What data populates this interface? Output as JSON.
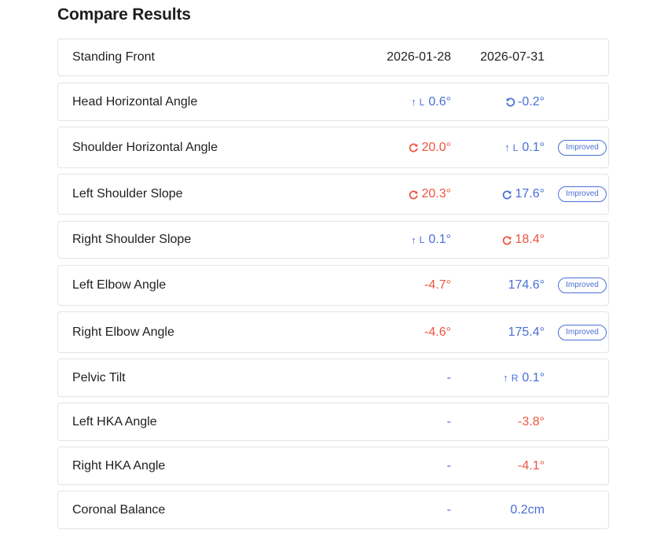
{
  "page_title": "Compare Results",
  "colors": {
    "improved_blue": "#4a6fd6",
    "worse_red": "#ec5540"
  },
  "header": {
    "label": "Standing Front",
    "date1": "2026-01-28",
    "date2": "2026-07-31"
  },
  "rows": [
    {
      "label": "Head Horizontal Angle",
      "v1": {
        "value": "0.6°",
        "color": "blue",
        "icon": "up-arrow-icon",
        "side": "L"
      },
      "v2": {
        "value": "-0.2°",
        "color": "blue",
        "icon": "rotate-ccw-icon"
      },
      "badge": ""
    },
    {
      "label": "Shoulder Horizontal Angle",
      "v1": {
        "value": "20.0°",
        "color": "red",
        "icon": "rotate-cw-icon"
      },
      "v2": {
        "value": "0.1°",
        "color": "blue",
        "icon": "up-arrow-icon",
        "side": "L"
      },
      "badge": "Improved"
    },
    {
      "label": "Left Shoulder Slope",
      "v1": {
        "value": "20.3°",
        "color": "red",
        "icon": "rotate-cw-icon"
      },
      "v2": {
        "value": "17.6°",
        "color": "blue",
        "icon": "rotate-cw-icon"
      },
      "badge": "Improved"
    },
    {
      "label": "Right Shoulder Slope",
      "v1": {
        "value": "0.1°",
        "color": "blue",
        "icon": "up-arrow-icon",
        "side": "L"
      },
      "v2": {
        "value": "18.4°",
        "color": "red",
        "icon": "rotate-cw-icon"
      },
      "badge": ""
    },
    {
      "label": "Left Elbow Angle",
      "v1": {
        "value": "-4.7°",
        "color": "red"
      },
      "v2": {
        "value": "174.6°",
        "color": "blue"
      },
      "badge": "Improved"
    },
    {
      "label": "Right Elbow Angle",
      "v1": {
        "value": "-4.6°",
        "color": "red"
      },
      "v2": {
        "value": "175.4°",
        "color": "blue"
      },
      "badge": "Improved"
    },
    {
      "label": "Pelvic Tilt",
      "v1": {
        "value": "-",
        "color": "blue"
      },
      "v2": {
        "value": "0.1°",
        "color": "blue",
        "icon": "up-arrow-icon",
        "side": "R"
      },
      "badge": ""
    },
    {
      "label": "Left HKA Angle",
      "v1": {
        "value": "-",
        "color": "blue"
      },
      "v2": {
        "value": "-3.8°",
        "color": "red"
      },
      "badge": ""
    },
    {
      "label": "Right HKA Angle",
      "v1": {
        "value": "-",
        "color": "blue"
      },
      "v2": {
        "value": "-4.1°",
        "color": "red"
      },
      "badge": ""
    },
    {
      "label": "Coronal Balance",
      "v1": {
        "value": "-",
        "color": "blue"
      },
      "v2": {
        "value": "0.2cm",
        "color": "blue"
      },
      "badge": ""
    }
  ]
}
